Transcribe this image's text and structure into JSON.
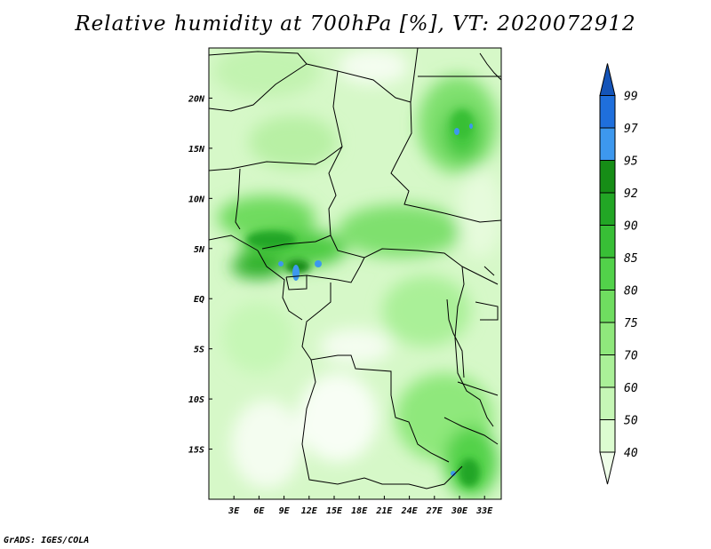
{
  "title": "Relative humidity at 700hPa [%], VT: 2020072912",
  "credit": "GrADS: IGES/COLA",
  "map": {
    "variable": "Relative humidity",
    "level": "700hPa",
    "units": "%",
    "valid_time": "2020072912",
    "lon_ticks": [
      "3E",
      "6E",
      "9E",
      "12E",
      "15E",
      "18E",
      "21E",
      "24E",
      "27E",
      "30E",
      "33E"
    ],
    "lat_ticks": [
      "20N",
      "15N",
      "10N",
      "5N",
      "EQ",
      "5S",
      "10S",
      "15S"
    ],
    "lon_range": [
      0,
      35
    ],
    "lat_range": [
      -20,
      25
    ]
  },
  "colorbar": {
    "levels": [
      "40",
      "50",
      "60",
      "70",
      "75",
      "80",
      "85",
      "90",
      "92",
      "95",
      "97",
      "99"
    ],
    "colors": [
      "#eefde8",
      "#dcfcd0",
      "#c6f7b6",
      "#aaf098",
      "#8fe87c",
      "#6fdd60",
      "#52d24a",
      "#38bf36",
      "#22a625",
      "#168d16",
      "#3d98ee",
      "#1f6fdc",
      "#1454b8"
    ]
  }
}
